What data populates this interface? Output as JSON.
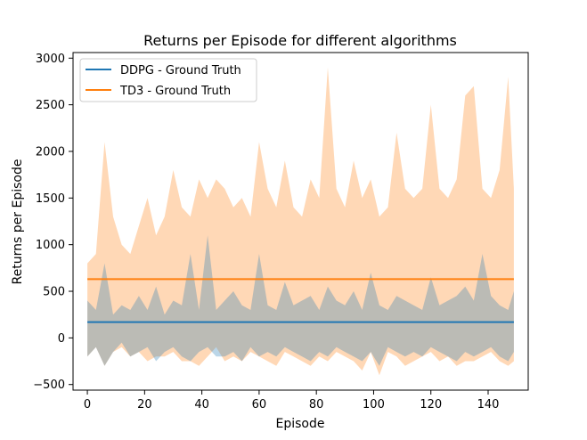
{
  "chart_data": {
    "type": "line",
    "title": "Returns per Episode for different algorithms",
    "xlabel": "Episode",
    "ylabel": "Returns per Episode",
    "xlim": [
      -5,
      154
    ],
    "ylim": [
      -560,
      3060
    ],
    "x_ticks": [
      0,
      20,
      40,
      60,
      80,
      100,
      120,
      140
    ],
    "y_ticks": [
      -500,
      0,
      500,
      1000,
      1500,
      2000,
      2500,
      3000
    ],
    "grid": false,
    "legend_position": "top-left",
    "series": [
      {
        "name": "DDPG - Ground Truth",
        "color": "#1f77b4",
        "x": [
          0,
          149
        ],
        "values": [
          170,
          170
        ],
        "band_x": [
          0,
          3,
          6,
          9,
          12,
          15,
          18,
          21,
          24,
          27,
          30,
          33,
          36,
          39,
          42,
          45,
          48,
          51,
          54,
          57,
          60,
          63,
          66,
          69,
          72,
          75,
          78,
          81,
          84,
          87,
          90,
          93,
          96,
          99,
          102,
          105,
          108,
          111,
          114,
          117,
          120,
          123,
          126,
          129,
          132,
          135,
          138,
          141,
          144,
          147,
          149
        ],
        "band_upper": [
          400,
          300,
          800,
          250,
          350,
          300,
          450,
          300,
          550,
          250,
          400,
          350,
          900,
          300,
          1100,
          300,
          400,
          500,
          350,
          300,
          900,
          350,
          300,
          600,
          350,
          400,
          450,
          300,
          550,
          400,
          350,
          500,
          300,
          700,
          350,
          300,
          450,
          400,
          350,
          300,
          650,
          350,
          400,
          450,
          550,
          400,
          900,
          450,
          350,
          300,
          500
        ],
        "band_lower": [
          -200,
          -100,
          -300,
          -150,
          -50,
          -200,
          -150,
          -100,
          -250,
          -150,
          -100,
          -200,
          -250,
          -150,
          -100,
          -200,
          -200,
          -150,
          -250,
          -100,
          -200,
          -150,
          -200,
          -100,
          -150,
          -200,
          -250,
          -150,
          -200,
          -100,
          -150,
          -200,
          -250,
          -150,
          -300,
          -100,
          -150,
          -200,
          -150,
          -200,
          -100,
          -150,
          -200,
          -250,
          -150,
          -200,
          -150,
          -100,
          -200,
          -250,
          -150
        ]
      },
      {
        "name": "TD3 - Ground Truth",
        "color": "#ff7f0e",
        "x": [
          0,
          149
        ],
        "values": [
          630,
          630
        ],
        "band_x": [
          0,
          3,
          6,
          9,
          12,
          15,
          18,
          21,
          24,
          27,
          30,
          33,
          36,
          39,
          42,
          45,
          48,
          51,
          54,
          57,
          60,
          63,
          66,
          69,
          72,
          75,
          78,
          81,
          84,
          87,
          90,
          93,
          96,
          99,
          102,
          105,
          108,
          111,
          114,
          117,
          120,
          123,
          126,
          129,
          132,
          135,
          138,
          141,
          144,
          147,
          149
        ],
        "band_upper": [
          800,
          900,
          2100,
          1300,
          1000,
          900,
          1200,
          1500,
          1100,
          1300,
          1800,
          1400,
          1300,
          1700,
          1500,
          1700,
          1600,
          1400,
          1500,
          1300,
          2100,
          1600,
          1400,
          1900,
          1400,
          1300,
          1700,
          1500,
          2900,
          1600,
          1400,
          1900,
          1500,
          1700,
          1300,
          1400,
          2200,
          1600,
          1500,
          1600,
          2500,
          1600,
          1500,
          1700,
          2600,
          2700,
          1600,
          1500,
          1800,
          2800,
          1600
        ],
        "band_lower": [
          -200,
          -100,
          -300,
          -150,
          -100,
          -200,
          -150,
          -250,
          -200,
          -200,
          -150,
          -250,
          -250,
          -300,
          -200,
          -100,
          -250,
          -200,
          -250,
          -150,
          -200,
          -250,
          -300,
          -150,
          -200,
          -250,
          -300,
          -200,
          -250,
          -150,
          -200,
          -250,
          -350,
          -150,
          -400,
          -150,
          -200,
          -300,
          -250,
          -200,
          -150,
          -250,
          -200,
          -300,
          -250,
          -250,
          -200,
          -150,
          -250,
          -300,
          -250
        ]
      }
    ]
  }
}
